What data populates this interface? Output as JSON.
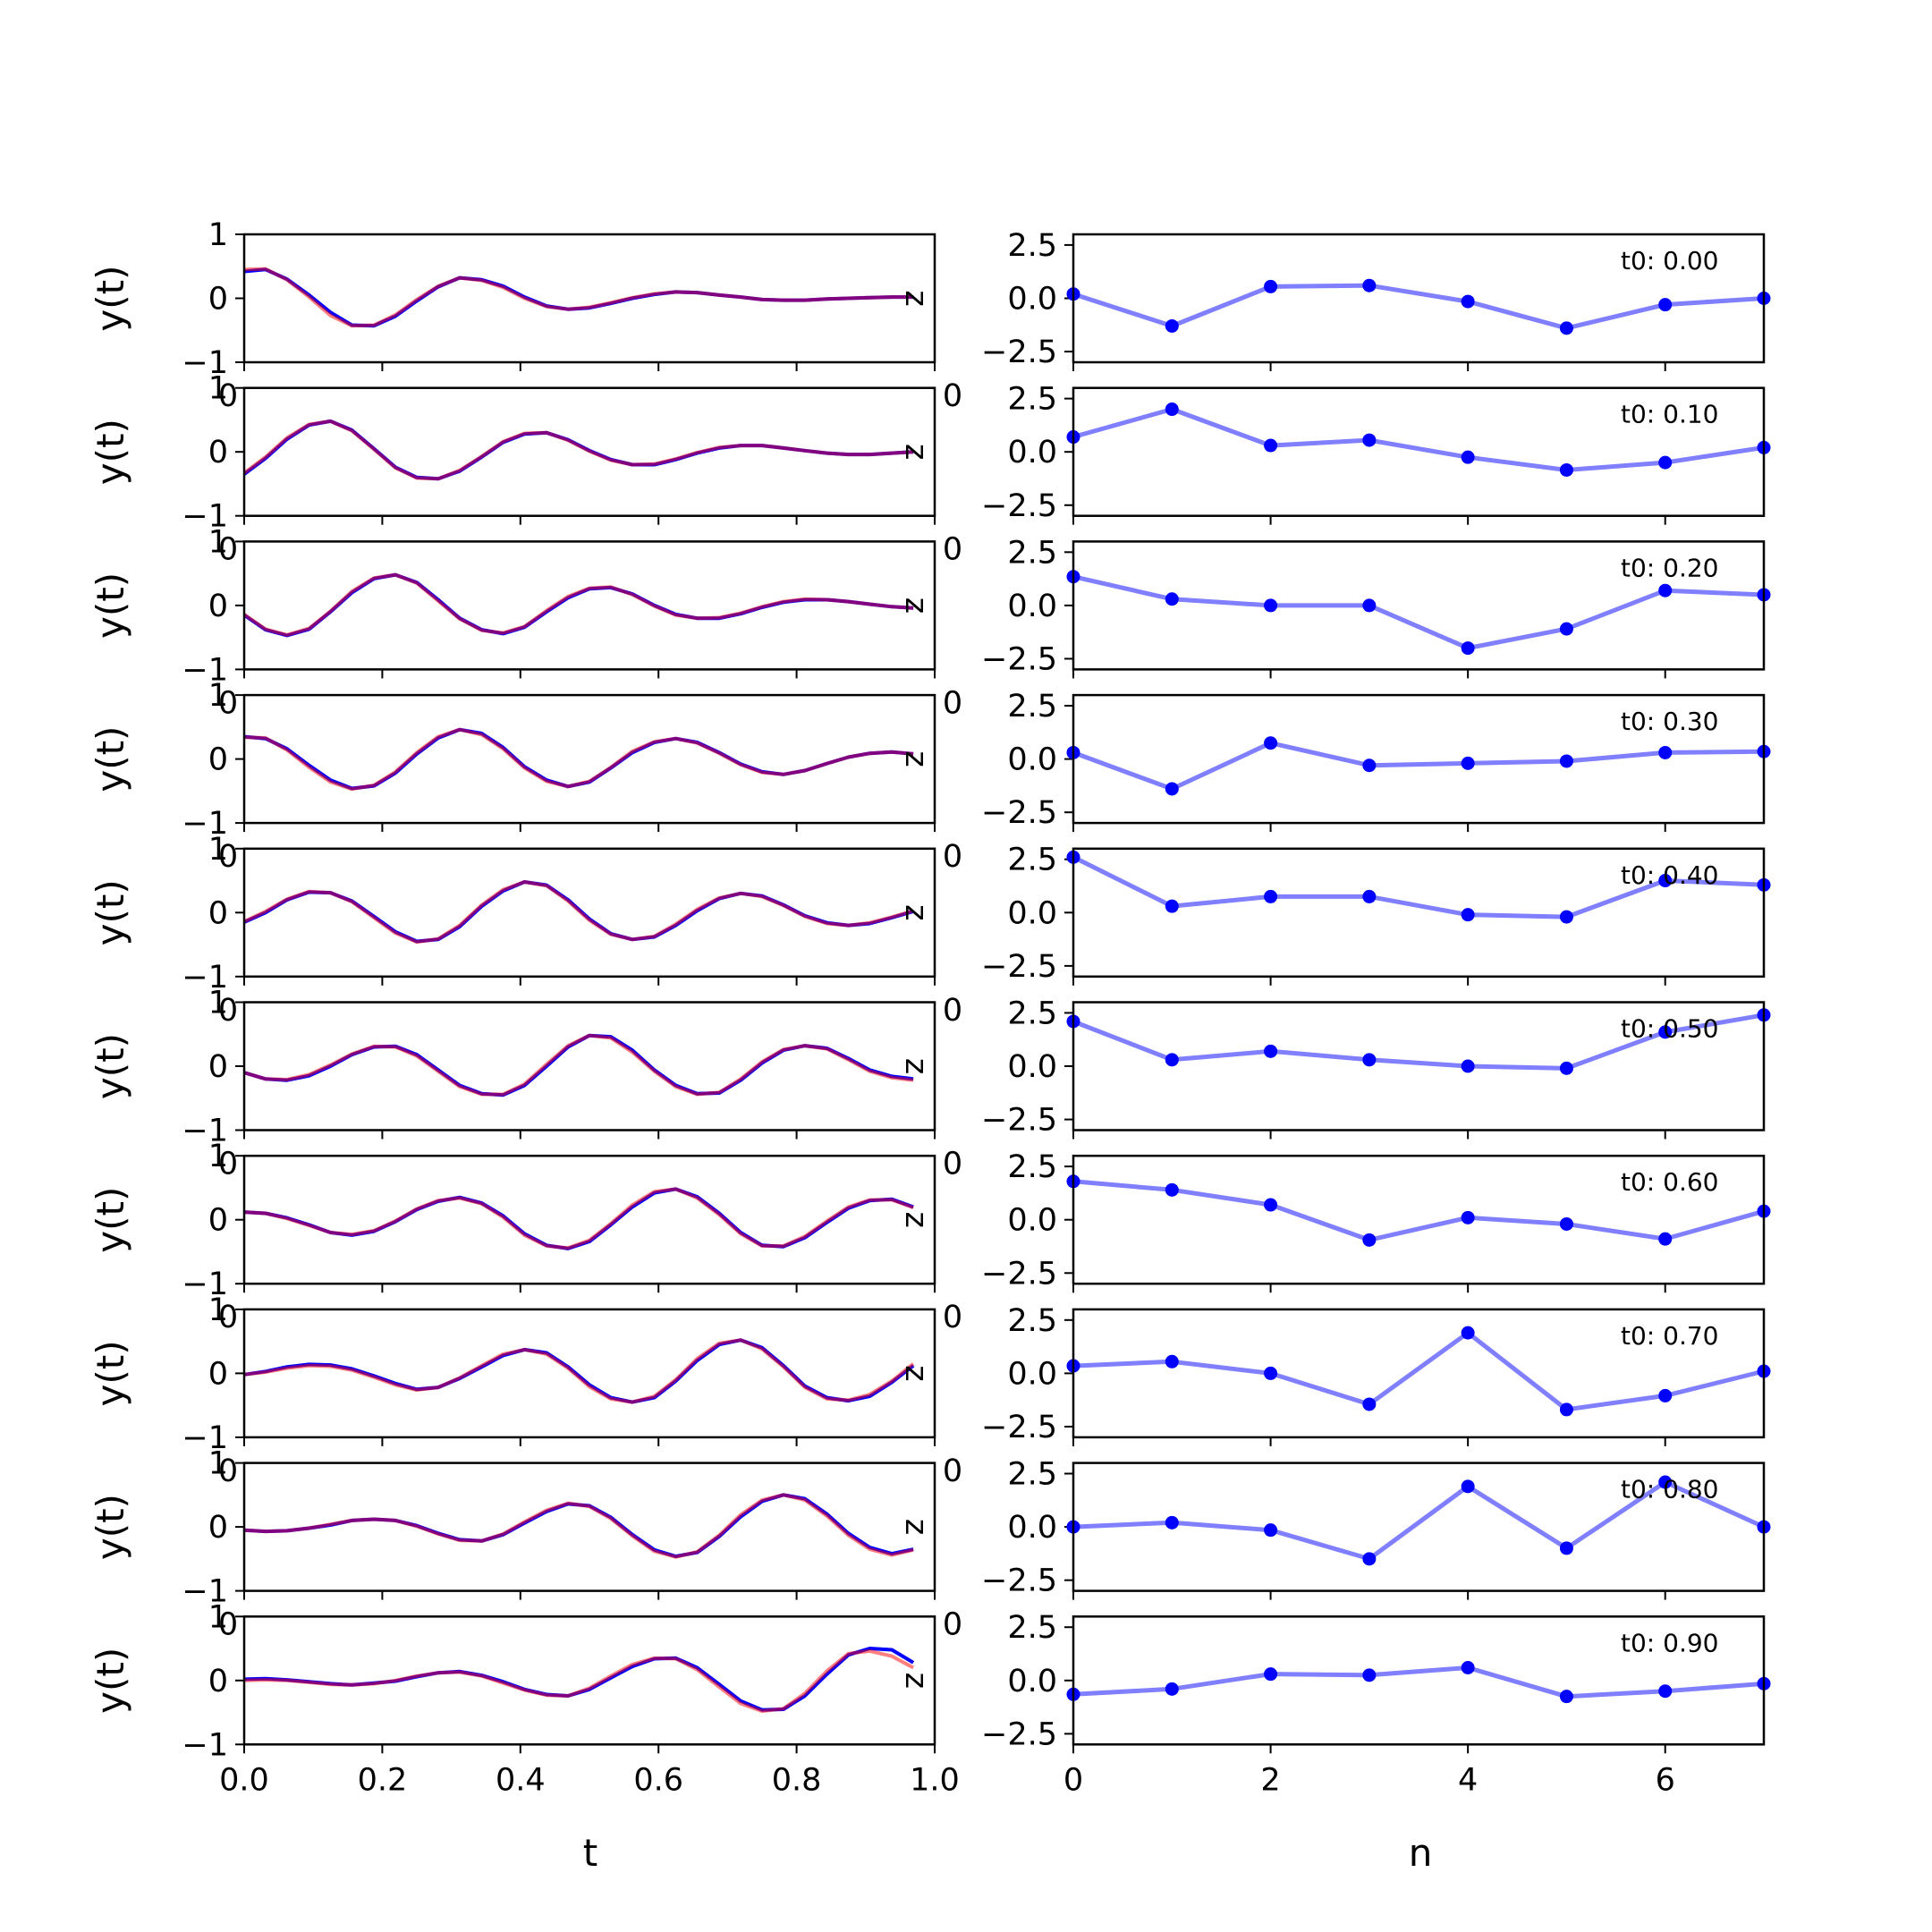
{
  "colors": {
    "series_a": "#0000ff",
    "series_b": "#ff0000",
    "samples": "#0000ff",
    "frame": "#000000"
  },
  "left_column": {
    "ylabel": "y(t)",
    "xlabel": "t",
    "overlap_y_tick": "0",
    "right_edge_label": "z"
  },
  "right_column": {
    "xlabel": "n",
    "overlap_y_tick": "0"
  },
  "chart_data": [
    {
      "type": "line",
      "panel": "left",
      "xlabel": "t",
      "ylabel": "y(t)",
      "xlim": [
        0,
        1
      ],
      "ylim": [
        -1,
        1
      ],
      "x_ticks": [
        "0.0",
        "0.2",
        "0.4",
        "0.6",
        "0.8",
        "1.0"
      ],
      "y_ticks": [
        "1",
        "0",
        "−1"
      ],
      "grid": false,
      "x": [
        0,
        0.031,
        0.062,
        0.094,
        0.125,
        0.156,
        0.188,
        0.219,
        0.25,
        0.281,
        0.312,
        0.344,
        0.375,
        0.406,
        0.438,
        0.469,
        0.5,
        0.531,
        0.562,
        0.594,
        0.625,
        0.656,
        0.688,
        0.719,
        0.75,
        0.781,
        0.812,
        0.844,
        0.875,
        0.906,
        0.938,
        0.969
      ],
      "rows": [
        {
          "t0": 0.0,
          "series_a": [
            0.42,
            0.45,
            0.3,
            0.05,
            -0.22,
            -0.42,
            -0.43,
            -0.28,
            -0.04,
            0.18,
            0.32,
            0.29,
            0.19,
            0.02,
            -0.12,
            -0.17,
            -0.15,
            -0.08,
            0.0,
            0.06,
            0.1,
            0.09,
            0.05,
            0.02,
            -0.02,
            -0.03,
            -0.03,
            -0.01,
            0.0,
            0.01,
            0.02,
            0.02
          ],
          "series_b": [
            0.45,
            0.46,
            0.29,
            0.02,
            -0.27,
            -0.43,
            -0.42,
            -0.26,
            -0.02,
            0.19,
            0.32,
            0.28,
            0.17,
            0.0,
            -0.13,
            -0.17,
            -0.14,
            -0.07,
            0.01,
            0.07,
            0.1,
            0.09,
            0.05,
            0.02,
            -0.02,
            -0.03,
            -0.03,
            -0.01,
            0.0,
            0.01,
            0.02,
            0.02
          ]
        },
        {
          "t0": 0.1,
          "series_a": [
            -0.35,
            -0.1,
            0.2,
            0.42,
            0.48,
            0.34,
            0.05,
            -0.24,
            -0.4,
            -0.42,
            -0.3,
            -0.08,
            0.15,
            0.28,
            0.3,
            0.19,
            0.02,
            -0.12,
            -0.2,
            -0.2,
            -0.12,
            -0.02,
            0.06,
            0.1,
            0.1,
            0.06,
            0.02,
            -0.02,
            -0.04,
            -0.04,
            -0.02,
            0.0
          ],
          "series_b": [
            -0.33,
            -0.08,
            0.22,
            0.43,
            0.48,
            0.33,
            0.04,
            -0.25,
            -0.41,
            -0.42,
            -0.29,
            -0.07,
            0.16,
            0.29,
            0.3,
            0.18,
            0.01,
            -0.13,
            -0.2,
            -0.19,
            -0.11,
            -0.01,
            0.07,
            0.1,
            0.1,
            0.06,
            0.02,
            -0.02,
            -0.04,
            -0.04,
            -0.02,
            0.0
          ]
        },
        {
          "t0": 0.2,
          "series_a": [
            -0.15,
            -0.38,
            -0.47,
            -0.37,
            -0.1,
            0.2,
            0.42,
            0.48,
            0.36,
            0.09,
            -0.2,
            -0.38,
            -0.44,
            -0.34,
            -0.1,
            0.12,
            0.26,
            0.28,
            0.18,
            0.0,
            -0.14,
            -0.2,
            -0.2,
            -0.13,
            -0.03,
            0.05,
            0.09,
            0.09,
            0.06,
            0.02,
            -0.02,
            -0.04
          ],
          "series_b": [
            -0.14,
            -0.37,
            -0.46,
            -0.36,
            -0.09,
            0.22,
            0.43,
            0.48,
            0.35,
            0.07,
            -0.21,
            -0.39,
            -0.43,
            -0.33,
            -0.08,
            0.14,
            0.27,
            0.29,
            0.17,
            -0.01,
            -0.15,
            -0.2,
            -0.19,
            -0.12,
            -0.02,
            0.06,
            0.1,
            0.09,
            0.06,
            0.02,
            -0.02,
            -0.04
          ]
        },
        {
          "t0": 0.3,
          "series_a": [
            0.35,
            0.32,
            0.16,
            -0.1,
            -0.33,
            -0.46,
            -0.42,
            -0.22,
            0.08,
            0.33,
            0.46,
            0.4,
            0.18,
            -0.12,
            -0.33,
            -0.43,
            -0.36,
            -0.14,
            0.1,
            0.26,
            0.32,
            0.26,
            0.1,
            -0.08,
            -0.2,
            -0.24,
            -0.18,
            -0.07,
            0.03,
            0.09,
            0.11,
            0.08
          ],
          "series_b": [
            0.34,
            0.33,
            0.14,
            -0.13,
            -0.36,
            -0.47,
            -0.41,
            -0.2,
            0.1,
            0.35,
            0.46,
            0.38,
            0.16,
            -0.14,
            -0.35,
            -0.43,
            -0.35,
            -0.13,
            0.12,
            0.27,
            0.32,
            0.25,
            0.09,
            -0.09,
            -0.21,
            -0.24,
            -0.18,
            -0.07,
            0.03,
            0.09,
            0.11,
            0.08
          ]
        },
        {
          "t0": 0.4,
          "series_a": [
            -0.15,
            0.0,
            0.2,
            0.32,
            0.31,
            0.18,
            -0.06,
            -0.3,
            -0.45,
            -0.42,
            -0.22,
            0.1,
            0.34,
            0.48,
            0.43,
            0.2,
            -0.1,
            -0.33,
            -0.42,
            -0.38,
            -0.2,
            0.03,
            0.22,
            0.3,
            0.26,
            0.12,
            -0.05,
            -0.16,
            -0.2,
            -0.17,
            -0.08,
            0.02
          ],
          "series_b": [
            -0.14,
            0.02,
            0.21,
            0.33,
            0.31,
            0.17,
            -0.08,
            -0.32,
            -0.46,
            -0.41,
            -0.2,
            0.12,
            0.36,
            0.48,
            0.42,
            0.18,
            -0.12,
            -0.34,
            -0.42,
            -0.37,
            -0.18,
            0.05,
            0.23,
            0.3,
            0.25,
            0.11,
            -0.06,
            -0.17,
            -0.2,
            -0.16,
            -0.07,
            0.03
          ]
        },
        {
          "t0": 0.5,
          "series_a": [
            -0.1,
            -0.2,
            -0.22,
            -0.15,
            0.0,
            0.18,
            0.3,
            0.31,
            0.18,
            -0.06,
            -0.3,
            -0.43,
            -0.45,
            -0.3,
            0.0,
            0.3,
            0.48,
            0.46,
            0.25,
            -0.06,
            -0.3,
            -0.43,
            -0.42,
            -0.22,
            0.05,
            0.25,
            0.32,
            0.28,
            0.12,
            -0.06,
            -0.16,
            -0.2
          ],
          "series_b": [
            -0.1,
            -0.2,
            -0.21,
            -0.13,
            0.02,
            0.19,
            0.31,
            0.3,
            0.16,
            -0.08,
            -0.32,
            -0.44,
            -0.44,
            -0.28,
            0.03,
            0.32,
            0.48,
            0.44,
            0.22,
            -0.08,
            -0.32,
            -0.44,
            -0.41,
            -0.2,
            0.07,
            0.26,
            0.32,
            0.27,
            0.1,
            -0.08,
            -0.18,
            -0.22
          ]
        },
        {
          "t0": 0.6,
          "series_a": [
            0.12,
            0.1,
            0.03,
            -0.08,
            -0.2,
            -0.24,
            -0.18,
            -0.03,
            0.16,
            0.29,
            0.35,
            0.26,
            0.06,
            -0.22,
            -0.4,
            -0.45,
            -0.34,
            -0.08,
            0.2,
            0.42,
            0.48,
            0.36,
            0.1,
            -0.2,
            -0.4,
            -0.42,
            -0.28,
            -0.04,
            0.18,
            0.3,
            0.32,
            0.2
          ],
          "series_b": [
            0.12,
            0.1,
            0.02,
            -0.09,
            -0.2,
            -0.23,
            -0.17,
            -0.02,
            0.17,
            0.3,
            0.34,
            0.25,
            0.04,
            -0.24,
            -0.41,
            -0.44,
            -0.32,
            -0.06,
            0.23,
            0.44,
            0.48,
            0.34,
            0.08,
            -0.22,
            -0.41,
            -0.41,
            -0.26,
            -0.02,
            0.2,
            0.31,
            0.31,
            0.19
          ]
        },
        {
          "t0": 0.7,
          "series_a": [
            -0.02,
            0.03,
            0.1,
            0.14,
            0.13,
            0.07,
            -0.04,
            -0.16,
            -0.25,
            -0.22,
            -0.08,
            0.1,
            0.28,
            0.37,
            0.32,
            0.1,
            -0.18,
            -0.38,
            -0.45,
            -0.38,
            -0.12,
            0.2,
            0.45,
            0.52,
            0.4,
            0.12,
            -0.2,
            -0.38,
            -0.43,
            -0.36,
            -0.14,
            0.12
          ],
          "series_b": [
            -0.02,
            0.02,
            0.08,
            0.12,
            0.11,
            0.05,
            -0.06,
            -0.18,
            -0.26,
            -0.22,
            -0.07,
            0.12,
            0.3,
            0.37,
            0.3,
            0.08,
            -0.21,
            -0.4,
            -0.45,
            -0.36,
            -0.1,
            0.23,
            0.47,
            0.52,
            0.38,
            0.1,
            -0.22,
            -0.4,
            -0.42,
            -0.33,
            -0.12,
            0.15
          ]
        },
        {
          "t0": 0.8,
          "series_a": [
            -0.05,
            -0.07,
            -0.06,
            -0.02,
            0.03,
            0.1,
            0.12,
            0.1,
            0.02,
            -0.1,
            -0.2,
            -0.22,
            -0.12,
            0.06,
            0.24,
            0.36,
            0.33,
            0.15,
            -0.12,
            -0.36,
            -0.46,
            -0.4,
            -0.15,
            0.16,
            0.4,
            0.5,
            0.44,
            0.2,
            -0.1,
            -0.32,
            -0.42,
            -0.35
          ],
          "series_b": [
            -0.05,
            -0.07,
            -0.06,
            -0.02,
            0.04,
            0.1,
            0.12,
            0.1,
            0.01,
            -0.11,
            -0.21,
            -0.22,
            -0.11,
            0.08,
            0.26,
            0.37,
            0.32,
            0.13,
            -0.14,
            -0.38,
            -0.47,
            -0.39,
            -0.13,
            0.19,
            0.42,
            0.5,
            0.42,
            0.17,
            -0.13,
            -0.35,
            -0.44,
            -0.36
          ]
        },
        {
          "t0": 0.9,
          "series_a": [
            0.02,
            0.03,
            0.01,
            -0.02,
            -0.05,
            -0.07,
            -0.04,
            -0.01,
            0.06,
            0.12,
            0.14,
            0.08,
            -0.02,
            -0.14,
            -0.22,
            -0.24,
            -0.14,
            0.04,
            0.22,
            0.34,
            0.35,
            0.2,
            -0.06,
            -0.32,
            -0.46,
            -0.45,
            -0.24,
            0.1,
            0.4,
            0.5,
            0.48,
            0.28
          ],
          "series_b": [
            0.0,
            0.01,
            0.0,
            -0.03,
            -0.06,
            -0.07,
            -0.05,
            0.0,
            0.07,
            0.12,
            0.13,
            0.07,
            -0.04,
            -0.15,
            -0.23,
            -0.24,
            -0.12,
            0.07,
            0.25,
            0.35,
            0.34,
            0.17,
            -0.1,
            -0.36,
            -0.48,
            -0.44,
            -0.2,
            0.15,
            0.42,
            0.46,
            0.38,
            0.2
          ]
        }
      ]
    },
    {
      "type": "line",
      "panel": "right",
      "xlabel": "n",
      "xlim": [
        0,
        7
      ],
      "ylim": [
        -3,
        3
      ],
      "x_ticks": [
        "0",
        "2",
        "4",
        "6"
      ],
      "y_ticks": [
        "2.5",
        "0.0",
        "−2.5"
      ],
      "grid": false,
      "markers": true,
      "n": [
        0,
        1,
        2,
        3,
        4,
        5,
        6,
        7
      ],
      "rows": [
        {
          "label": "t0: 0.00",
          "values": [
            0.2,
            -1.3,
            0.55,
            0.6,
            -0.15,
            -1.4,
            -0.3,
            0.0
          ]
        },
        {
          "label": "t0: 0.10",
          "values": [
            0.7,
            2.0,
            0.3,
            0.55,
            -0.25,
            -0.85,
            -0.5,
            0.2
          ]
        },
        {
          "label": "t0: 0.20",
          "values": [
            1.35,
            0.3,
            0.0,
            0.0,
            -2.0,
            -1.1,
            0.7,
            0.5
          ]
        },
        {
          "label": "t0: 0.30",
          "values": [
            0.3,
            -1.4,
            0.75,
            -0.3,
            -0.2,
            -0.1,
            0.3,
            0.35
          ]
        },
        {
          "label": "t0: 0.40",
          "values": [
            2.6,
            0.3,
            0.75,
            0.75,
            -0.1,
            -0.2,
            1.5,
            1.3
          ]
        },
        {
          "label": "t0: 0.50",
          "values": [
            2.1,
            0.3,
            0.7,
            0.3,
            0.0,
            -0.1,
            1.6,
            2.4
          ]
        },
        {
          "label": "t0: 0.60",
          "values": [
            1.8,
            1.4,
            0.7,
            -0.95,
            0.1,
            -0.2,
            -0.9,
            0.4
          ]
        },
        {
          "label": "t0: 0.70",
          "values": [
            0.35,
            0.55,
            0.0,
            -1.45,
            1.9,
            -1.7,
            -1.05,
            0.1
          ]
        },
        {
          "label": "t0: 0.80",
          "values": [
            0.0,
            0.2,
            -0.15,
            -1.5,
            1.9,
            -1.0,
            2.1,
            0.0
          ]
        },
        {
          "label": "t0: 0.90",
          "values": [
            -0.65,
            -0.4,
            0.3,
            0.25,
            0.6,
            -0.75,
            -0.5,
            -0.15
          ]
        }
      ]
    }
  ]
}
